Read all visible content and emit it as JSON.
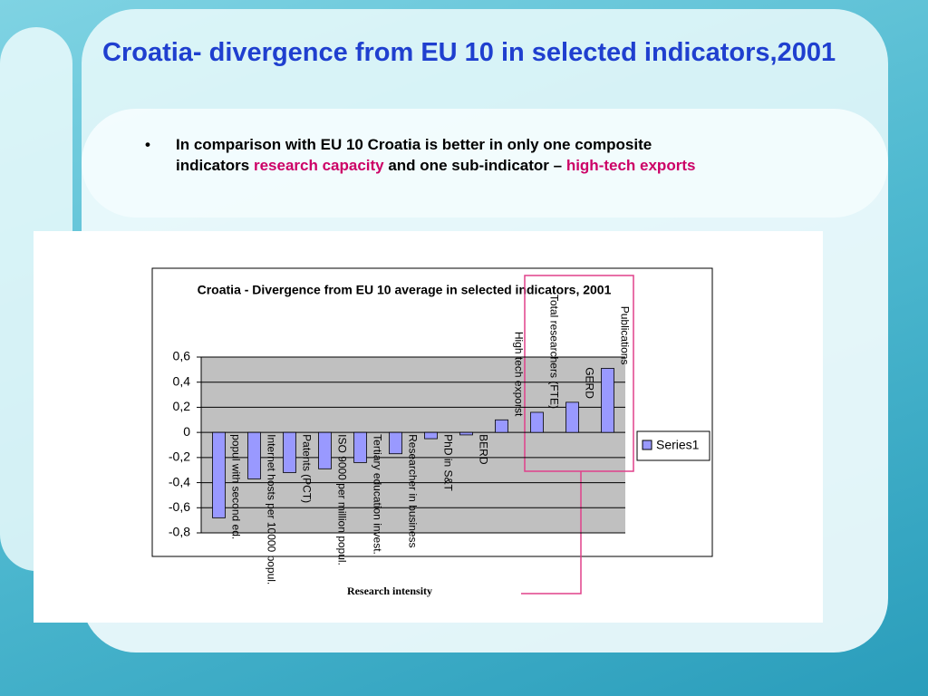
{
  "slide": {
    "title": "Croatia- divergence from EU 10 in selected indicators,2001",
    "bullet": [
      {
        "text": "In comparison with EU 10 Croatia is better in only one composite indicators ",
        "highlight": false
      },
      {
        "text": "research capacity",
        "highlight": true
      },
      {
        "text": " and one sub-indicator – ",
        "highlight": false
      },
      {
        "text": "high-tech exports",
        "highlight": true
      }
    ],
    "highlight_color": "#cc0066"
  },
  "chart_data": {
    "type": "bar",
    "title": "Croatia - Divergence from EU 10 average in selected indicators, 2001",
    "categories": [
      "popul with second ed.",
      "Internet hosts per 10000 popul.",
      "Patents (PCT)",
      "ISO 9000 per million popul.",
      "Tertiary education invest.",
      "Researcher in business",
      "PhD in S&T",
      "BERD",
      "High tech exporst",
      "Total researchers (FTE)",
      "GERD",
      "Publications"
    ],
    "series": [
      {
        "name": "Series1",
        "color": "#9999ff",
        "values": [
          -0.68,
          -0.37,
          -0.32,
          -0.29,
          -0.24,
          -0.17,
          -0.05,
          -0.02,
          0.1,
          0.16,
          0.24,
          0.51
        ]
      }
    ],
    "ylim": [
      -0.8,
      0.6
    ],
    "yticks": [
      {
        "value": -0.8,
        "label": "-0,8"
      },
      {
        "value": -0.6,
        "label": "-0,6"
      },
      {
        "value": -0.4,
        "label": "-0,4"
      },
      {
        "value": -0.2,
        "label": "-0,2"
      },
      0,
      {
        "value": 0.2,
        "label": "0,2"
      },
      {
        "value": 0.4,
        "label": "0,4"
      },
      {
        "value": 0.6,
        "label": "0,6"
      }
    ],
    "grid": true,
    "legend": "right",
    "annotation": "Research intensity"
  }
}
